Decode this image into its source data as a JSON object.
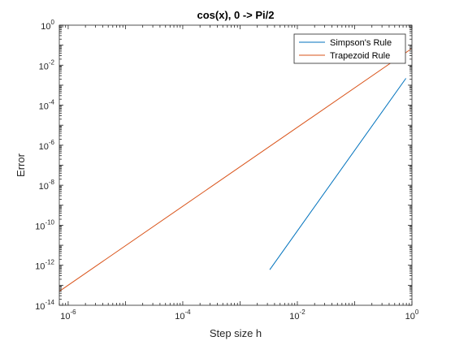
{
  "chart_data": {
    "type": "line",
    "title": "cos(x), 0 -> Pi/2",
    "xlabel": "Step size h",
    "ylabel": "Error",
    "xscale": "log",
    "yscale": "log",
    "xlim": [
      7e-07,
      1
    ],
    "ylim": [
      1e-14,
      1
    ],
    "x_tick_exponents": [
      -6,
      -4,
      -2,
      0
    ],
    "y_tick_exponents": [
      0,
      -2,
      -4,
      -6,
      -8,
      -10,
      -12,
      -14
    ],
    "grid": false,
    "legend_location": "top-right",
    "series": [
      {
        "name": "Simpson's Rule",
        "color": "#0072BD",
        "x": [
          0.0033,
          0.785
        ],
        "y": [
          6e-13,
          0.0022
        ]
      },
      {
        "name": "Trapezoid Rule",
        "color": "#D95319",
        "x": [
          7e-07,
          0.97
        ],
        "y": [
          5e-14,
          0.065
        ]
      }
    ]
  }
}
